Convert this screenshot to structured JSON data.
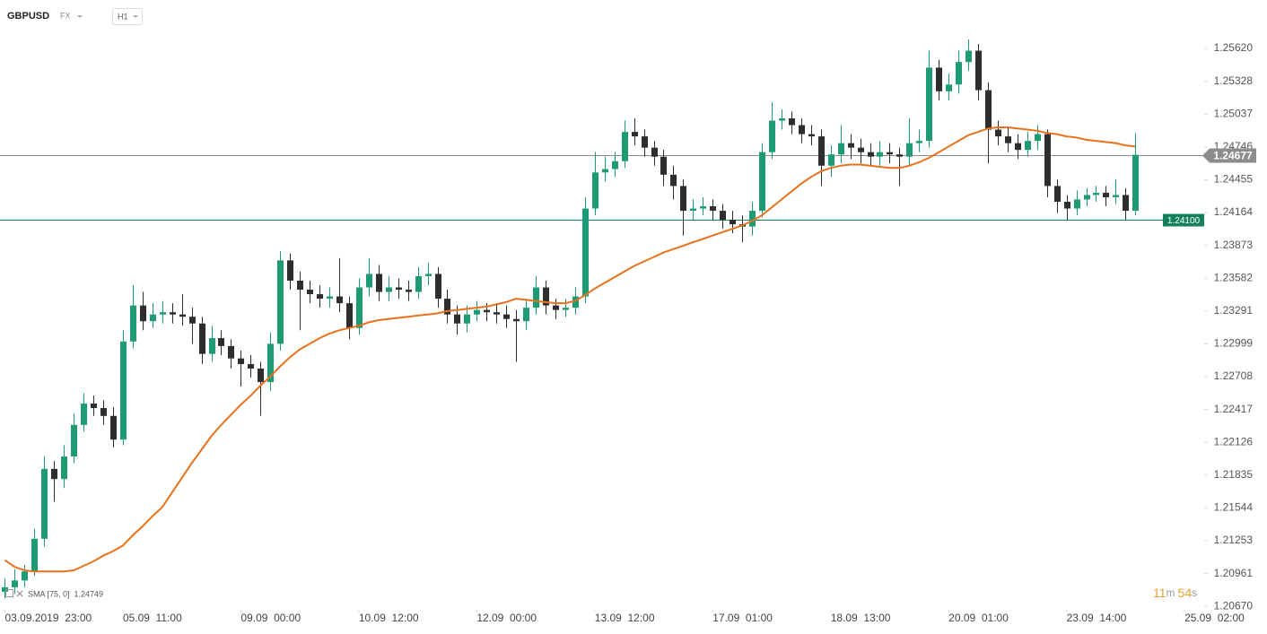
{
  "header": {
    "symbol": "GBPUSD",
    "market": "FX",
    "interval": "H1"
  },
  "chart_data": {
    "type": "candlestick",
    "up_color": "#1e9b74",
    "down_color": "#2e2e2e",
    "xlim": [
      -0.5,
      122
    ],
    "xticks": [
      {
        "value": 0,
        "label": "03.09.2019  23:00"
      },
      {
        "value": 12,
        "label": "05.09  11:00"
      },
      {
        "value": 24,
        "label": "09.09  00:00"
      },
      {
        "value": 36,
        "label": "10.09  12:00"
      },
      {
        "value": 48,
        "label": "12.09  00:00"
      },
      {
        "value": 60,
        "label": "13.09  12:00"
      },
      {
        "value": 72,
        "label": "17.09  01:00"
      },
      {
        "value": 84,
        "label": "18.09  13:00"
      },
      {
        "value": 96,
        "label": "20.09  01:00"
      },
      {
        "value": 108,
        "label": "23.09  14:00"
      },
      {
        "value": 120,
        "label": "25.09  02:00"
      }
    ],
    "ylim": [
      1.2064,
      1.2605
    ],
    "yticks": [
      {
        "value": 1.2562,
        "label": "1.25620"
      },
      1.25328,
      1.25037,
      1.24746,
      1.24455,
      1.24164,
      1.23873,
      1.23582,
      1.23291,
      1.22999,
      1.22708,
      1.22417,
      1.22126,
      1.21835,
      1.21544,
      1.21253,
      1.20961,
      {
        "value": 1.2067,
        "label": "1.20670"
      }
    ],
    "open": [
      1.208,
      1.2084,
      1.209,
      1.2098,
      1.2127,
      1.2189,
      1.218,
      1.22,
      1.2228,
      1.2247,
      1.2243,
      1.2236,
      1.2215,
      1.2302,
      1.2334,
      1.232,
      1.2326,
      1.2328,
      1.2326,
      1.2324,
      1.2318,
      1.2291,
      1.2305,
      1.2298,
      1.2287,
      1.2282,
      1.2278,
      1.2266,
      1.23,
      1.2374,
      1.2356,
      1.2348,
      1.2344,
      1.234,
      1.2342,
      1.2336,
      1.2314,
      1.235,
      1.2362,
      1.2346,
      1.235,
      1.2348,
      1.2346,
      1.236,
      1.2362,
      1.234,
      1.2326,
      1.2318,
      1.2326,
      1.233,
      1.2328,
      1.2326,
      1.2322,
      1.232,
      1.2332,
      1.235,
      1.2334,
      1.233,
      1.2332,
      1.2342,
      1.242,
      1.2452,
      1.2455,
      1.2462,
      1.2488,
      1.2484,
      1.2474,
      1.2466,
      1.245,
      1.244,
      1.2418,
      1.242,
      1.2422,
      1.2418,
      1.241,
      1.2406,
      1.2404,
      1.2418,
      1.247,
      1.2498,
      1.25,
      1.2494,
      1.2486,
      1.2484,
      1.2458,
      1.2468,
      1.2478,
      1.2474,
      1.247,
      1.2466,
      1.247,
      1.2468,
      1.2466,
      1.2478,
      1.248,
      1.2545,
      1.2524,
      1.253,
      1.255,
      1.256,
      1.2525,
      1.249,
      1.2484,
      1.2478,
      1.2472,
      1.248,
      1.2486,
      1.244,
      1.2426,
      1.242,
      1.2428,
      1.2432,
      1.2434,
      1.243,
      1.2432,
      1.2418
    ],
    "high": [
      1.2092,
      1.21,
      1.2104,
      1.2136,
      1.22,
      1.2196,
      1.221,
      1.2238,
      1.2256,
      1.2254,
      1.225,
      1.2244,
      1.2312,
      1.2352,
      1.2346,
      1.2336,
      1.2338,
      1.2336,
      1.2344,
      1.2332,
      1.2324,
      1.2316,
      1.2312,
      1.2304,
      1.2294,
      1.229,
      1.2284,
      1.231,
      1.2382,
      1.238,
      1.2364,
      1.2356,
      1.2352,
      1.235,
      1.2376,
      1.2342,
      1.2358,
      1.2376,
      1.237,
      1.236,
      1.2358,
      1.2356,
      1.2368,
      1.2372,
      1.2368,
      1.2348,
      1.2334,
      1.2334,
      1.2338,
      1.2336,
      1.2336,
      1.2334,
      1.233,
      1.234,
      1.236,
      1.2356,
      1.234,
      1.234,
      1.235,
      1.243,
      1.247,
      1.2466,
      1.247,
      1.2498,
      1.25,
      1.249,
      1.248,
      1.2472,
      1.2458,
      1.2446,
      1.2428,
      1.243,
      1.2428,
      1.2424,
      1.2418,
      1.2414,
      1.2426,
      1.2478,
      1.2514,
      1.2508,
      1.2506,
      1.25,
      1.2494,
      1.249,
      1.2476,
      1.2494,
      1.2486,
      1.2482,
      1.2478,
      1.248,
      1.2478,
      1.2474,
      1.25,
      1.249,
      1.256,
      1.2552,
      1.254,
      1.256,
      1.257,
      1.2566,
      1.2532,
      1.2498,
      1.2492,
      1.2486,
      1.2488,
      1.2494,
      1.249,
      1.2446,
      1.2432,
      1.2436,
      1.2438,
      1.244,
      1.244,
      1.2446,
      1.2438,
      1.2487
    ],
    "low": [
      1.2074,
      1.2078,
      1.2084,
      1.2094,
      1.212,
      1.216,
      1.2172,
      1.2194,
      1.2222,
      1.2236,
      1.2228,
      1.2208,
      1.221,
      1.2296,
      1.2312,
      1.2314,
      1.2318,
      1.2318,
      1.2316,
      1.23,
      1.2282,
      1.2284,
      1.229,
      1.2278,
      1.2262,
      1.227,
      1.2236,
      1.2258,
      1.2294,
      1.2348,
      1.2312,
      1.2336,
      1.2332,
      1.2332,
      1.2328,
      1.2304,
      1.2308,
      1.2342,
      1.2338,
      1.2338,
      1.234,
      1.2338,
      1.234,
      1.2352,
      1.2332,
      1.2318,
      1.2308,
      1.231,
      1.232,
      1.232,
      1.2318,
      1.2314,
      1.2284,
      1.2312,
      1.2326,
      1.2326,
      1.2322,
      1.2324,
      1.2326,
      1.2336,
      1.2414,
      1.2444,
      1.2448,
      1.2456,
      1.2476,
      1.2466,
      1.2458,
      1.244,
      1.2428,
      1.2396,
      1.241,
      1.2414,
      1.241,
      1.2402,
      1.2398,
      1.239,
      1.2396,
      1.2412,
      1.2464,
      1.249,
      1.2486,
      1.2478,
      1.2476,
      1.244,
      1.2448,
      1.246,
      1.2464,
      1.246,
      1.2458,
      1.2458,
      1.246,
      1.244,
      1.2458,
      1.247,
      1.2474,
      1.2516,
      1.2516,
      1.2522,
      1.2542,
      1.2516,
      1.246,
      1.2476,
      1.247,
      1.2464,
      1.2466,
      1.2472,
      1.243,
      1.2416,
      1.241,
      1.2414,
      1.2422,
      1.2426,
      1.2422,
      1.2424,
      1.241,
      1.2414
    ],
    "close": [
      1.2084,
      1.209,
      1.2098,
      1.2127,
      1.2189,
      1.218,
      1.22,
      1.2228,
      1.2247,
      1.2243,
      1.2236,
      1.2215,
      1.2302,
      1.2334,
      1.232,
      1.2326,
      1.2328,
      1.2326,
      1.2324,
      1.2318,
      1.2291,
      1.2305,
      1.2298,
      1.2287,
      1.2282,
      1.2278,
      1.2266,
      1.23,
      1.2374,
      1.2356,
      1.2348,
      1.2344,
      1.234,
      1.2342,
      1.2336,
      1.2314,
      1.235,
      1.2362,
      1.2346,
      1.235,
      1.2348,
      1.2346,
      1.236,
      1.2362,
      1.234,
      1.2326,
      1.2318,
      1.2326,
      1.233,
      1.2328,
      1.2326,
      1.2322,
      1.232,
      1.2332,
      1.235,
      1.2334,
      1.233,
      1.2332,
      1.2342,
      1.242,
      1.2452,
      1.2455,
      1.2462,
      1.2488,
      1.2484,
      1.2474,
      1.2466,
      1.245,
      1.244,
      1.2418,
      1.242,
      1.2422,
      1.2418,
      1.241,
      1.2406,
      1.2404,
      1.2418,
      1.247,
      1.2498,
      1.25,
      1.2494,
      1.2486,
      1.2484,
      1.2458,
      1.2468,
      1.2478,
      1.2474,
      1.247,
      1.2466,
      1.247,
      1.2468,
      1.2466,
      1.2478,
      1.248,
      1.2545,
      1.2524,
      1.253,
      1.255,
      1.256,
      1.2525,
      1.249,
      1.2484,
      1.2478,
      1.2472,
      1.248,
      1.2486,
      1.244,
      1.2426,
      1.242,
      1.2428,
      1.2432,
      1.2434,
      1.243,
      1.2432,
      1.2418,
      1.24677
    ],
    "sma": {
      "name": "SMA [75, 0]",
      "color": "#e8721c",
      "last_value": 1.24749,
      "values": [
        1.2108,
        1.2102,
        1.2099,
        1.2098,
        1.2098,
        1.2098,
        1.2098,
        1.2099,
        1.2103,
        1.2107,
        1.2112,
        1.2116,
        1.2121,
        1.213,
        1.2138,
        1.2147,
        1.2155,
        1.2168,
        1.2181,
        1.2194,
        1.2206,
        1.2218,
        1.2228,
        1.2237,
        1.2246,
        1.2254,
        1.2263,
        1.2271,
        1.228,
        1.2288,
        1.2295,
        1.23,
        1.2305,
        1.2309,
        1.2312,
        1.2314,
        1.2316,
        1.2319,
        1.2321,
        1.2322,
        1.2323,
        1.2324,
        1.2325,
        1.2326,
        1.2327,
        1.2329,
        1.233,
        1.2331,
        1.2332,
        1.2333,
        1.2335,
        1.2337,
        1.234,
        1.2339,
        1.2338,
        1.2337,
        1.2336,
        1.2336,
        1.2338,
        1.2343,
        1.2349,
        1.2354,
        1.2359,
        1.2364,
        1.2369,
        1.2373,
        1.2377,
        1.2381,
        1.2384,
        1.2387,
        1.239,
        1.2393,
        1.2396,
        1.2399,
        1.2402,
        1.2405,
        1.2409,
        1.2414,
        1.2421,
        1.2428,
        1.2435,
        1.2442,
        1.2448,
        1.2453,
        1.2456,
        1.2458,
        1.2459,
        1.2459,
        1.2458,
        1.2457,
        1.2456,
        1.2456,
        1.2458,
        1.2461,
        1.2465,
        1.247,
        1.2475,
        1.248,
        1.2485,
        1.2488,
        1.2491,
        1.2492,
        1.2492,
        1.2491,
        1.249,
        1.2489,
        1.2487,
        1.2486,
        1.2484,
        1.2483,
        1.2481,
        1.248,
        1.2479,
        1.2478,
        1.2476,
        1.2475
      ]
    },
    "price_lines": [
      {
        "value": 1.24677,
        "label": "1.24677",
        "color": "#8c8c8c"
      },
      {
        "value": 1.241,
        "label": "1.24100",
        "color": "#14805c"
      }
    ],
    "countdown": {
      "minutes": "11",
      "minutes_unit": "m",
      "seconds": "54",
      "seconds_unit": "s"
    }
  }
}
